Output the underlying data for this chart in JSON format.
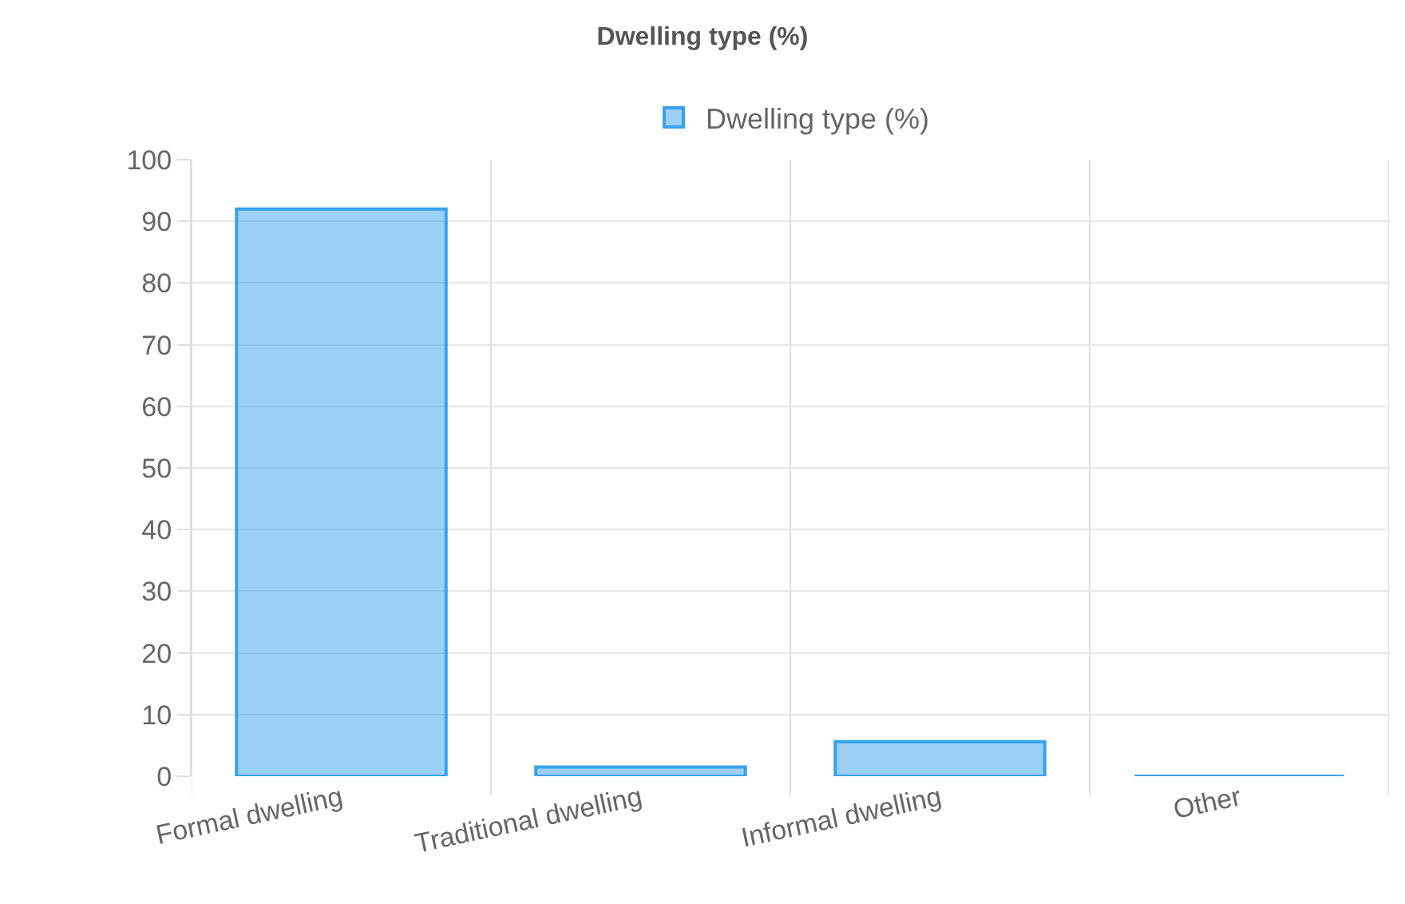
{
  "chart_data": {
    "type": "bar",
    "title": "Dwelling type (%)",
    "categories": [
      "Formal dwelling",
      "Traditional dwelling",
      "Informal dwelling",
      "Other"
    ],
    "series": [
      {
        "name": "Dwelling type (%)",
        "color": "#36a2eb",
        "values": [
          92,
          1.5,
          5.6,
          0
        ]
      }
    ],
    "ylim": [
      0,
      100
    ],
    "yticks": [
      0,
      10,
      20,
      30,
      40,
      50,
      60,
      70,
      80,
      90,
      100
    ],
    "grid": true,
    "legend": "top"
  }
}
